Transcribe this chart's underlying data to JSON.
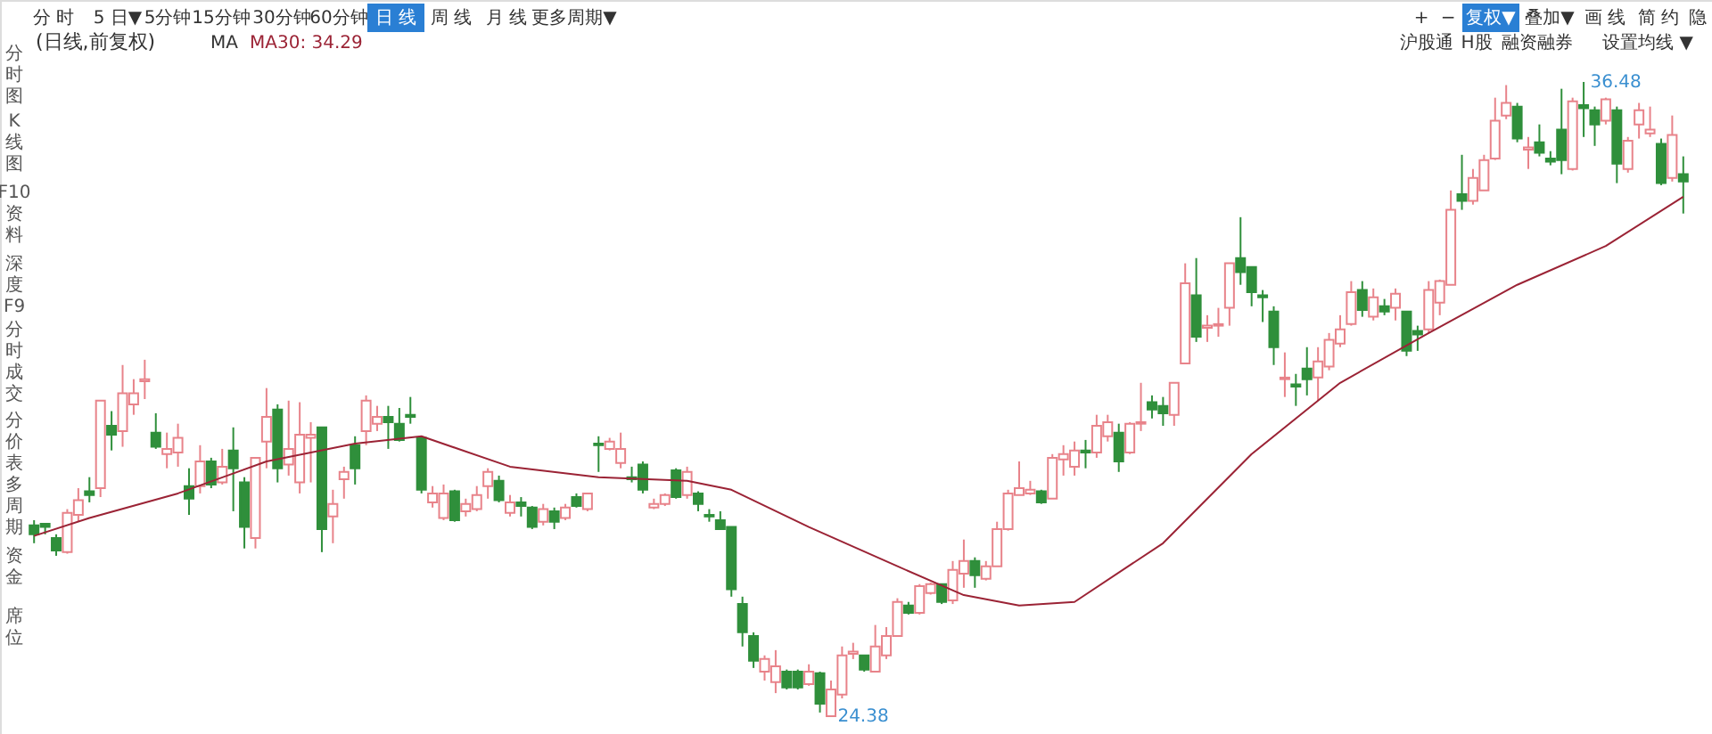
{
  "chart_data": {
    "type": "candlestick",
    "title": "(日线,前复权)",
    "categories": [
      null,
      null,
      null,
      null,
      null,
      null,
      null,
      null,
      null,
      null,
      null,
      null,
      null,
      null,
      null,
      null,
      null,
      null,
      null,
      null,
      null,
      null,
      null,
      null,
      null,
      null,
      null,
      null,
      null,
      null,
      null,
      null,
      null,
      null,
      null,
      null,
      null,
      null,
      null,
      null,
      null,
      null,
      null,
      null,
      null,
      null,
      null,
      null,
      null,
      null,
      null,
      null,
      null,
      null,
      null,
      null,
      null,
      null,
      null,
      null,
      null,
      null,
      null,
      null,
      null,
      null,
      null,
      null,
      null,
      null,
      null,
      null,
      null,
      null,
      null,
      null,
      null,
      null,
      null,
      null,
      null,
      null,
      null,
      null,
      null,
      null,
      null,
      null,
      null,
      null,
      null,
      null,
      null,
      null,
      null,
      null,
      null,
      null,
      null,
      null,
      null,
      null,
      null,
      null,
      null,
      null,
      null,
      null,
      null,
      null,
      null,
      null,
      null,
      null,
      null,
      null,
      null,
      null,
      null,
      null,
      null,
      null,
      null,
      null,
      null,
      null,
      null,
      null,
      null,
      null,
      null,
      null,
      null,
      null,
      null,
      null,
      null,
      null,
      null,
      null,
      null,
      null,
      null,
      null,
      null,
      null,
      null,
      null,
      null,
      null
    ],
    "ohlc": [
      [
        28.02,
        28.12,
        27.68,
        27.85
      ],
      [
        28.05,
        28.05,
        27.85,
        27.99
      ],
      [
        27.78,
        27.85,
        27.44,
        27.54
      ],
      [
        27.51,
        28.33,
        27.48,
        28.26
      ],
      [
        28.22,
        28.73,
        28.09,
        28.5
      ],
      [
        28.67,
        28.94,
        28.46,
        28.6
      ],
      [
        28.73,
        30.4,
        28.56,
        30.4
      ],
      [
        29.92,
        30.2,
        29.45,
        29.75
      ],
      [
        29.82,
        31.08,
        29.52,
        30.54
      ],
      [
        30.33,
        30.81,
        30.13,
        30.54
      ],
      [
        30.77,
        31.18,
        30.43,
        30.81
      ],
      [
        29.79,
        30.16,
        29.48,
        29.52
      ],
      [
        29.38,
        29.79,
        29.11,
        29.48
      ],
      [
        29.41,
        29.96,
        29.14,
        29.69
      ],
      [
        28.77,
        29.11,
        28.22,
        28.53
      ],
      [
        28.77,
        29.55,
        28.63,
        29.24
      ],
      [
        29.24,
        29.31,
        28.73,
        28.8
      ],
      [
        28.84,
        29.48,
        28.8,
        29.14
      ],
      [
        29.45,
        29.89,
        28.29,
        29.11
      ],
      [
        28.84,
        28.94,
        27.58,
        27.99
      ],
      [
        27.78,
        29.31,
        27.58,
        29.31
      ],
      [
        29.62,
        30.64,
        29.11,
        30.09
      ],
      [
        30.23,
        30.33,
        28.84,
        29.11
      ],
      [
        29.18,
        30.4,
        28.97,
        29.48
      ],
      [
        28.84,
        30.37,
        28.63,
        29.75
      ],
      [
        29.69,
        29.99,
        28.84,
        29.75
      ],
      [
        29.89,
        29.89,
        27.51,
        27.95
      ],
      [
        28.19,
        28.7,
        27.68,
        28.43
      ],
      [
        28.9,
        29.14,
        28.53,
        29.04
      ],
      [
        29.55,
        29.72,
        28.8,
        29.11
      ],
      [
        29.82,
        30.5,
        29.55,
        30.4
      ],
      [
        29.96,
        30.3,
        29.82,
        30.09
      ],
      [
        30.09,
        30.3,
        29.48,
        29.99
      ],
      [
        29.96,
        30.26,
        29.62,
        29.65
      ],
      [
        30.13,
        30.47,
        29.96,
        30.09
      ],
      [
        29.69,
        29.69,
        28.63,
        28.7
      ],
      [
        28.46,
        28.77,
        28.36,
        28.63
      ],
      [
        28.16,
        28.8,
        28.12,
        28.63
      ],
      [
        28.67,
        28.7,
        28.09,
        28.12
      ],
      [
        28.29,
        28.53,
        28.19,
        28.43
      ],
      [
        28.33,
        28.77,
        28.29,
        28.6
      ],
      [
        28.77,
        29.11,
        28.53,
        29.04
      ],
      [
        28.87,
        28.97,
        28.46,
        28.5
      ],
      [
        28.26,
        28.6,
        28.19,
        28.46
      ],
      [
        28.46,
        28.56,
        28.19,
        28.39
      ],
      [
        28.36,
        28.39,
        27.95,
        27.99
      ],
      [
        28.09,
        28.43,
        28.02,
        28.33
      ],
      [
        28.29,
        28.36,
        27.95,
        28.09
      ],
      [
        28.16,
        28.43,
        28.12,
        28.36
      ],
      [
        28.56,
        28.63,
        28.36,
        28.39
      ],
      [
        28.33,
        28.63,
        28.29,
        28.63
      ],
      [
        29.58,
        29.72,
        29.04,
        29.55
      ],
      [
        29.48,
        29.69,
        29.45,
        29.62
      ],
      [
        29.21,
        29.79,
        29.11,
        29.48
      ],
      [
        28.94,
        29.14,
        28.84,
        28.9
      ],
      [
        29.18,
        29.24,
        28.63,
        28.7
      ],
      [
        28.36,
        28.53,
        28.33,
        28.43
      ],
      [
        28.43,
        28.63,
        28.39,
        28.6
      ],
      [
        29.07,
        29.11,
        28.53,
        28.56
      ],
      [
        28.6,
        29.14,
        28.53,
        29.04
      ],
      [
        28.63,
        28.67,
        28.29,
        28.43
      ],
      [
        28.22,
        28.33,
        28.09,
        28.19
      ],
      [
        28.12,
        28.29,
        27.95,
        27.95
      ],
      [
        27.99,
        27.99,
        26.66,
        26.8
      ],
      [
        26.52,
        26.66,
        25.71,
        25.98
      ],
      [
        25.91,
        25.98,
        25.3,
        25.44
      ],
      [
        25.23,
        25.54,
        25.06,
        25.47
      ],
      [
        25.03,
        25.64,
        24.82,
        25.33
      ],
      [
        25.23,
        25.27,
        24.89,
        24.93
      ],
      [
        25.23,
        25.27,
        24.89,
        24.93
      ],
      [
        24.99,
        25.37,
        24.96,
        25.23
      ],
      [
        25.2,
        25.23,
        24.45,
        24.62
      ],
      [
        24.38,
        25.06,
        24.38,
        24.89
      ],
      [
        24.79,
        25.71,
        24.72,
        25.54
      ],
      [
        25.57,
        25.78,
        25.47,
        25.61
      ],
      [
        25.54,
        25.54,
        25.23,
        25.27
      ],
      [
        25.23,
        26.12,
        25.23,
        25.71
      ],
      [
        25.54,
        26.08,
        25.47,
        25.91
      ],
      [
        25.91,
        26.63,
        25.91,
        26.56
      ],
      [
        26.49,
        26.56,
        26.32,
        26.35
      ],
      [
        26.35,
        26.9,
        26.32,
        26.86
      ],
      [
        26.73,
        26.93,
        26.7,
        26.9
      ],
      [
        26.9,
        26.9,
        26.52,
        26.56
      ],
      [
        26.59,
        27.34,
        26.52,
        27.17
      ],
      [
        27.1,
        27.75,
        26.83,
        27.34
      ],
      [
        27.34,
        27.41,
        26.83,
        27.07
      ],
      [
        27.0,
        27.34,
        26.97,
        27.24
      ],
      [
        27.24,
        28.09,
        27.24,
        27.95
      ],
      [
        27.95,
        28.7,
        27.92,
        28.63
      ],
      [
        28.6,
        29.24,
        28.6,
        28.73
      ],
      [
        28.63,
        28.87,
        28.6,
        28.7
      ],
      [
        28.67,
        28.7,
        28.43,
        28.46
      ],
      [
        28.53,
        29.38,
        28.53,
        29.31
      ],
      [
        29.28,
        29.55,
        28.97,
        29.38
      ],
      [
        29.14,
        29.62,
        28.97,
        29.45
      ],
      [
        29.45,
        29.65,
        29.11,
        29.41
      ],
      [
        29.41,
        30.13,
        29.31,
        29.92
      ],
      [
        29.72,
        30.13,
        29.62,
        29.99
      ],
      [
        29.79,
        29.96,
        29.04,
        29.24
      ],
      [
        29.41,
        29.99,
        29.38,
        29.96
      ],
      [
        29.96,
        30.74,
        29.82,
        29.99
      ],
      [
        30.37,
        30.5,
        30.06,
        30.23
      ],
      [
        30.3,
        30.47,
        29.92,
        30.16
      ],
      [
        30.13,
        30.74,
        29.92,
        30.74
      ],
      [
        31.11,
        33.02,
        31.11,
        32.64
      ],
      [
        32.41,
        33.12,
        31.52,
        31.62
      ],
      [
        31.79,
        32.03,
        31.52,
        31.83
      ],
      [
        31.83,
        32.17,
        31.62,
        31.86
      ],
      [
        32.17,
        33.02,
        31.83,
        33.02
      ],
      [
        33.12,
        33.9,
        32.61,
        32.85
      ],
      [
        32.95,
        32.95,
        32.2,
        32.47
      ],
      [
        32.41,
        32.51,
        31.9,
        32.37
      ],
      [
        32.1,
        32.2,
        31.08,
        31.42
      ],
      [
        30.81,
        31.32,
        30.47,
        30.84
      ],
      [
        30.71,
        30.91,
        30.3,
        30.67
      ],
      [
        31.01,
        31.42,
        30.5,
        30.81
      ],
      [
        30.84,
        31.42,
        30.4,
        31.15
      ],
      [
        31.05,
        31.69,
        30.98,
        31.56
      ],
      [
        31.49,
        32.03,
        31.42,
        31.76
      ],
      [
        31.86,
        32.68,
        31.83,
        32.47
      ],
      [
        32.51,
        32.68,
        32.0,
        32.13
      ],
      [
        32.0,
        32.54,
        31.93,
        32.37
      ],
      [
        32.2,
        32.34,
        32.03,
        32.1
      ],
      [
        32.17,
        32.54,
        31.93,
        32.44
      ],
      [
        32.1,
        32.1,
        31.25,
        31.35
      ],
      [
        31.73,
        31.83,
        31.35,
        31.66
      ],
      [
        31.76,
        32.68,
        31.69,
        32.51
      ],
      [
        32.27,
        32.71,
        32.03,
        32.68
      ],
      [
        32.61,
        34.41,
        32.61,
        34.04
      ],
      [
        34.34,
        35.09,
        34.04,
        34.21
      ],
      [
        34.21,
        34.82,
        34.14,
        34.65
      ],
      [
        34.41,
        35.09,
        34.41,
        34.99
      ],
      [
        35.02,
        36.18,
        34.99,
        35.74
      ],
      [
        35.84,
        36.42,
        35.77,
        36.08
      ],
      [
        36.01,
        36.08,
        35.33,
        35.4
      ],
      [
        35.19,
        35.43,
        34.82,
        35.23
      ],
      [
        35.33,
        35.67,
        35.06,
        35.13
      ],
      [
        35.02,
        35.16,
        34.89,
        34.96
      ],
      [
        35.57,
        36.35,
        34.72,
        34.99
      ],
      [
        34.82,
        36.18,
        34.79,
        36.11
      ],
      [
        36.04,
        36.48,
        35.43,
        35.98
      ],
      [
        35.94,
        36.01,
        35.26,
        35.67
      ],
      [
        35.74,
        36.18,
        35.67,
        36.15
      ],
      [
        35.94,
        36.01,
        34.55,
        34.92
      ],
      [
        34.82,
        35.43,
        34.75,
        35.36
      ],
      [
        35.67,
        36.08,
        35.4,
        35.94
      ],
      [
        35.5,
        36.01,
        35.43,
        35.57
      ],
      [
        35.3,
        35.4,
        34.51,
        34.55
      ],
      [
        34.65,
        35.84,
        34.58,
        35.47
      ],
      [
        34.72,
        35.06,
        33.97,
        34.58
      ]
    ],
    "colors": [
      "#2f8f3b",
      "#2f8f3b",
      "#2f8f3b",
      "#e8838a",
      "#e8838a",
      "#2f8f3b",
      "#e8838a",
      "#2f8f3b",
      "#e8838a",
      "#e8838a",
      "#e8838a",
      "#2f8f3b",
      "#e8838a",
      "#e8838a",
      "#2f8f3b",
      "#e8838a",
      "#2f8f3b",
      "#e8838a",
      "#2f8f3b",
      "#2f8f3b",
      "#e8838a",
      "#e8838a",
      "#2f8f3b",
      "#e8838a",
      "#e8838a",
      "#e8838a",
      "#2f8f3b",
      "#e8838a",
      "#e8838a",
      "#2f8f3b",
      "#e8838a",
      "#e8838a",
      "#2f8f3b",
      "#2f8f3b",
      "#2f8f3b",
      "#2f8f3b",
      "#e8838a",
      "#e8838a",
      "#2f8f3b",
      "#e8838a",
      "#e8838a",
      "#e8838a",
      "#2f8f3b",
      "#e8838a",
      "#2f8f3b",
      "#2f8f3b",
      "#e8838a",
      "#2f8f3b",
      "#e8838a",
      "#2f8f3b",
      "#e8838a",
      "#2f8f3b",
      "#e8838a",
      "#e8838a",
      "#2f8f3b",
      "#2f8f3b",
      "#e8838a",
      "#e8838a",
      "#2f8f3b",
      "#e8838a",
      "#2f8f3b",
      "#2f8f3b",
      "#2f8f3b",
      "#2f8f3b",
      "#2f8f3b",
      "#2f8f3b",
      "#e8838a",
      "#e8838a",
      "#2f8f3b",
      "#2f8f3b",
      "#e8838a",
      "#2f8f3b",
      "#e8838a",
      "#e8838a",
      "#e8838a",
      "#2f8f3b",
      "#e8838a",
      "#e8838a",
      "#e8838a",
      "#2f8f3b",
      "#e8838a",
      "#e8838a",
      "#2f8f3b",
      "#e8838a",
      "#e8838a",
      "#2f8f3b",
      "#e8838a",
      "#e8838a",
      "#e8838a",
      "#e8838a",
      "#e8838a",
      "#2f8f3b",
      "#e8838a",
      "#e8838a",
      "#e8838a",
      "#2f8f3b",
      "#e8838a",
      "#e8838a",
      "#2f8f3b",
      "#e8838a",
      "#e8838a",
      "#2f8f3b",
      "#2f8f3b",
      "#e8838a",
      "#e8838a",
      "#2f8f3b",
      "#e8838a",
      "#e8838a",
      "#e8838a",
      "#2f8f3b",
      "#2f8f3b",
      "#2f8f3b",
      "#2f8f3b",
      "#e8838a",
      "#2f8f3b",
      "#2f8f3b",
      "#e8838a",
      "#e8838a",
      "#e8838a",
      "#e8838a",
      "#2f8f3b",
      "#e8838a",
      "#2f8f3b",
      "#e8838a",
      "#2f8f3b",
      "#2f8f3b",
      "#e8838a",
      "#e8838a",
      "#e8838a",
      "#2f8f3b",
      "#e8838a",
      "#e8838a",
      "#e8838a",
      "#e8838a",
      "#2f8f3b",
      "#e8838a",
      "#2f8f3b",
      "#2f8f3b",
      "#2f8f3b",
      "#e8838a",
      "#2f8f3b",
      "#2f8f3b",
      "#e8838a",
      "#2f8f3b",
      "#e8838a",
      "#e8838a",
      "#e8838a",
      "#2f8f3b",
      "#e8838a",
      "#2f8f3b"
    ],
    "series": [
      {
        "name": "MA30: 34.29",
        "type": "line",
        "line_style": "solid",
        "color": "#9b2335",
        "values": [
          27.82,
          null,
          null,
          null,
          null,
          28.16,
          null,
          null,
          null,
          null,
          null,
          null,
          null,
          28.63,
          null,
          null,
          null,
          null,
          null,
          null,
          null,
          29.24,
          null,
          null,
          null,
          null,
          null,
          null,
          null,
          29.58,
          null,
          null,
          null,
          null,
          null,
          29.72,
          null,
          null,
          null,
          null,
          null,
          null,
          null,
          29.14,
          null,
          null,
          null,
          null,
          null,
          null,
          null,
          28.94,
          null,
          null,
          null,
          null,
          null,
          null,
          null,
          28.87,
          null,
          null,
          null,
          28.7,
          null,
          null,
          null,
          null,
          null,
          null,
          27.99,
          null,
          null,
          null,
          null,
          null,
          null,
          null,
          27.24,
          null,
          null,
          null,
          null,
          null,
          26.69,
          null,
          null,
          null,
          null,
          26.49,
          null,
          null,
          null,
          null,
          26.56,
          null,
          null,
          null,
          null,
          null,
          null,
          null,
          27.68,
          null,
          null,
          null,
          null,
          null,
          null,
          null,
          29.38,
          null,
          null,
          null,
          null,
          null,
          null,
          null,
          30.74,
          null,
          null,
          null,
          null,
          null,
          null,
          null,
          31.69,
          null,
          null,
          null,
          null,
          null,
          null,
          null,
          32.61,
          null,
          null,
          null,
          null,
          null,
          null,
          null,
          33.35,
          null,
          null,
          null,
          null,
          null,
          null,
          34.29
        ]
      }
    ],
    "annotations": [
      "分 时",
      "5 日▼",
      "5分钟",
      "15分钟",
      "30分钟",
      "60分钟",
      "日 线",
      "周 线",
      "月 线",
      "更多周期▼",
      "+",
      "−",
      "复权▼",
      "叠加▼",
      "画 线",
      "简 约",
      "隐",
      "沪股通",
      "H股",
      "融资融券",
      "设置均线 ▼",
      "分时图",
      "K线图",
      "F10资料",
      "深度F9",
      "分时成交",
      "分价表",
      "多周期",
      "资金",
      "席位",
      "MA",
      "36.48",
      "24.38"
    ]
  }
}
